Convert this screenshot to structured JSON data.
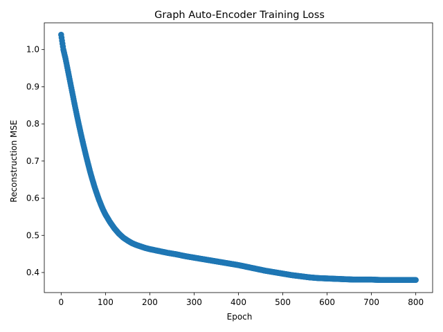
{
  "chart_data": {
    "type": "scatter",
    "title": "Graph Auto-Encoder Training Loss",
    "xlabel": "Epoch",
    "ylabel": "Reconstruction MSE",
    "xlim": [
      -38,
      838
    ],
    "ylim": [
      0.346,
      1.072
    ],
    "xticks": [
      0,
      100,
      200,
      300,
      400,
      500,
      600,
      700,
      800
    ],
    "yticks": [
      0.4,
      0.5,
      0.6,
      0.7,
      0.8,
      0.9,
      1.0
    ],
    "grid": false,
    "legend": "none",
    "marker_color": "#1f77b4",
    "series": [
      {
        "x": [
          0,
          5,
          10,
          15,
          20,
          25,
          30,
          35,
          40,
          45,
          50,
          55,
          60,
          65,
          70,
          75,
          80,
          85,
          90,
          95,
          100,
          110,
          120,
          130,
          140,
          150,
          160,
          170,
          180,
          190,
          200,
          220,
          240,
          260,
          280,
          300,
          320,
          340,
          360,
          380,
          400,
          420,
          440,
          460,
          480,
          500,
          520,
          540,
          560,
          580,
          600,
          620,
          640,
          660,
          680,
          700,
          720,
          740,
          760,
          780,
          800
        ],
        "y": [
          1.04,
          1.0,
          0.975,
          0.945,
          0.915,
          0.885,
          0.855,
          0.826,
          0.798,
          0.771,
          0.745,
          0.72,
          0.696,
          0.673,
          0.652,
          0.632,
          0.614,
          0.597,
          0.582,
          0.568,
          0.556,
          0.536,
          0.519,
          0.505,
          0.494,
          0.486,
          0.479,
          0.474,
          0.47,
          0.466,
          0.463,
          0.458,
          0.453,
          0.449,
          0.444,
          0.44,
          0.436,
          0.432,
          0.428,
          0.424,
          0.42,
          0.415,
          0.41,
          0.405,
          0.401,
          0.397,
          0.393,
          0.39,
          0.387,
          0.385,
          0.384,
          0.383,
          0.382,
          0.381,
          0.381,
          0.381,
          0.38,
          0.38,
          0.38,
          0.38,
          0.38
        ]
      }
    ]
  }
}
